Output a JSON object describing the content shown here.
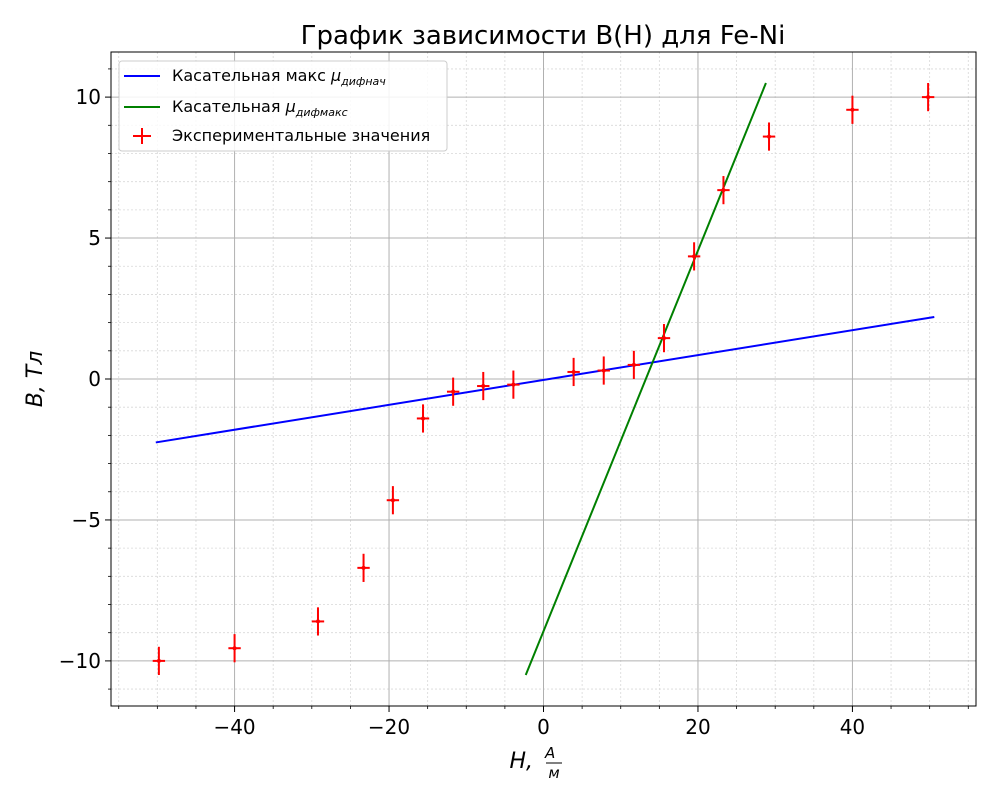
{
  "chart_data": {
    "type": "scatter",
    "title": "График зависимости B(H) для Fe-Ni",
    "xlabel": "H, A/м",
    "ylabel": "B, Тл",
    "xlim": [
      -56,
      56
    ],
    "ylim": [
      -11.6,
      11.6
    ],
    "x_ticks": [
      -40,
      -20,
      0,
      20,
      40
    ],
    "x_tick_labels": [
      "−40",
      "−20",
      "0",
      "20",
      "40"
    ],
    "y_ticks": [
      -10,
      -5,
      0,
      5,
      10
    ],
    "y_tick_labels": [
      "−10",
      "−5",
      "0",
      "5",
      "10"
    ],
    "grid": true,
    "legend_position": "top-left",
    "series": [
      {
        "name": "Касательная макс μдифнач",
        "legend_prefix": "Касательная макс ",
        "legend_mu": "μ",
        "legend_sub": "дифнач",
        "kind": "line",
        "color": "#0000ff",
        "x": [
          -50.2,
          50.6
        ],
        "y": [
          -2.25,
          2.2
        ]
      },
      {
        "name": "Касательная μдифмакс",
        "legend_prefix": "Касательная ",
        "legend_mu": "μ",
        "legend_sub": "дифмакс",
        "kind": "line",
        "color": "#008000",
        "x": [
          -2.3,
          28.8
        ],
        "y": [
          -10.5,
          10.5
        ]
      },
      {
        "name": "Экспериментальные значения",
        "legend_prefix": "Экспериментальные значения",
        "kind": "errorbar",
        "color": "#ff0000",
        "x": [
          -49.8,
          -40.0,
          -29.2,
          -23.3,
          -19.5,
          -15.6,
          -11.7,
          -7.8,
          -3.9,
          3.9,
          7.8,
          11.7,
          15.6,
          19.5,
          23.3,
          29.2,
          40.0,
          49.8
        ],
        "y": [
          -10.0,
          -9.55,
          -8.6,
          -6.7,
          -4.3,
          -1.4,
          -0.45,
          -0.25,
          -0.2,
          0.25,
          0.3,
          0.5,
          1.45,
          4.35,
          6.7,
          8.6,
          9.55,
          10.0
        ],
        "xerr": 0.8,
        "yerr": 0.5
      }
    ]
  }
}
